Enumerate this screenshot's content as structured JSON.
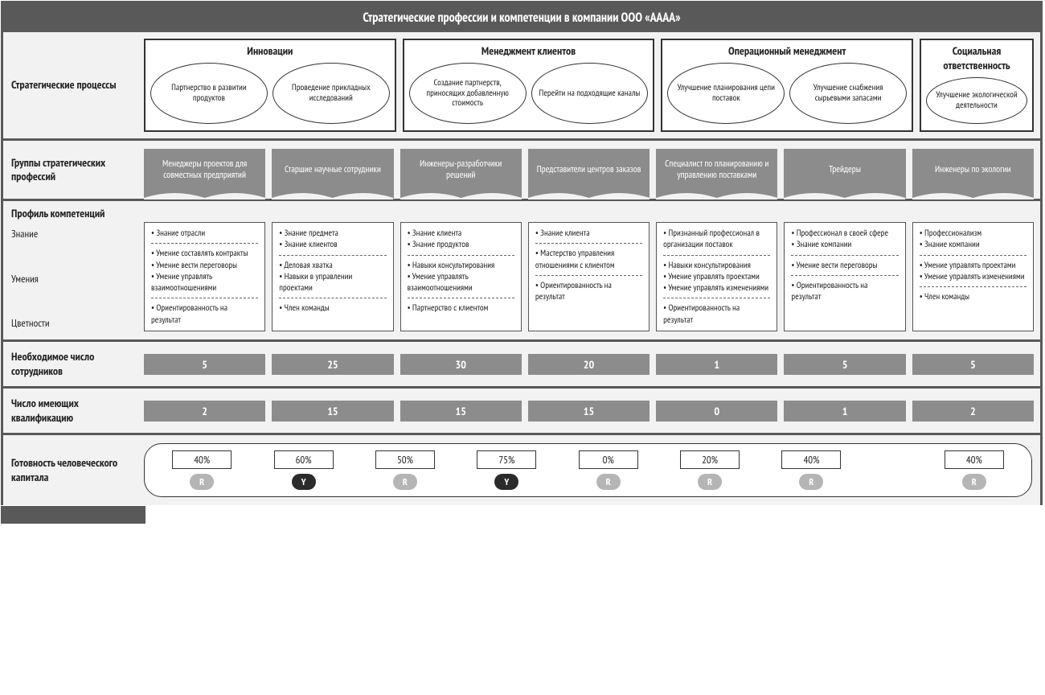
{
  "title": "Стратегические профессии и компетенции в компании ООО «АААА»",
  "rows": {
    "processes_label": "Стратегические процессы",
    "groups_label": "Группы стратегических профессий",
    "profile_header": "Профиль компетенций",
    "profile_side": {
      "a": "Знание",
      "b": "Умения",
      "c": "Цветности"
    },
    "need_label": "Необходимое число сотрудников",
    "have_label": "Число имеющих квалификацию",
    "ready_label": "Готовность человеческого капитала"
  },
  "processes": [
    {
      "title": "Инновации",
      "ovals": [
        "Партнерство в развитии продуктов",
        "Проведение прикладных исследований"
      ]
    },
    {
      "title": "Менеджмент клиентов",
      "ovals": [
        "Создание партнерств, приносящих добавленную стоимость",
        "Перейти на подходящие каналы"
      ]
    },
    {
      "title": "Операционный менеджмент",
      "ovals": [
        "Улучшение планирования цепи поставок",
        "Улучшение снабжения сырьевыми запасами"
      ]
    },
    {
      "title": "Социальная ответственность",
      "narrow": true,
      "ovals": [
        "Улучшение экологической деятельности"
      ]
    }
  ],
  "professions": [
    "Менеджеры проектов для совместных предприятий",
    "Старшие научные сотрудники",
    "Инженеры-разработчики решений",
    "Представители центров заказов",
    "Специалист по планированию и управлению поставками",
    "Трейдеры",
    "Инженеры по экологии"
  ],
  "competencies": [
    {
      "sections": [
        [
          "Знание отрасли"
        ],
        [
          "Умение составлять контракты",
          "Умение вести переговоры",
          "Умение управлять взаимоотношениями"
        ],
        [
          "Ориентированность на результат"
        ]
      ]
    },
    {
      "sections": [
        [
          "Знание предмета",
          "Знание клиентов"
        ],
        [
          "Деловая хватка",
          "Навыки в управлении проектами"
        ],
        [
          "Член команды"
        ]
      ]
    },
    {
      "sections": [
        [
          "Знание клиента",
          "Знание продуктов"
        ],
        [
          "Навыки консультирования",
          "Умение управлять взаимоотношениями"
        ],
        [
          "Партнерство с клиентом"
        ]
      ]
    },
    {
      "sections": [
        [
          "Знание клиента"
        ],
        [
          "Мастерство управления отношениями с клиентом"
        ],
        [
          "Ориентированность на результат"
        ]
      ]
    },
    {
      "sections": [
        [
          "Признанный профессионал в организации поставок"
        ],
        [
          "Навыки консультирования",
          "Умение управлять проектами",
          "Умение управлять изменениями"
        ],
        [
          "Ориентированность на результат"
        ]
      ]
    },
    {
      "sections": [
        [
          "Профессионал в своей сфере",
          "Знание компании"
        ],
        [
          "Умение вести переговоры"
        ],
        [
          "Ориентированность на результат"
        ]
      ]
    },
    {
      "sections": [
        [
          "Профессионализм",
          "Знание компании"
        ],
        [
          "Умение управлять проектами",
          "Умение управлять изменениями"
        ],
        [
          "Член команды"
        ]
      ]
    }
  ],
  "needed": [
    "5",
    "25",
    "30",
    "20",
    "1",
    "5",
    "5"
  ],
  "qualified": [
    "2",
    "15",
    "15",
    "15",
    "0",
    "1",
    "2"
  ],
  "readiness": [
    {
      "pct": "40%",
      "badge": "R",
      "tone": "light"
    },
    {
      "pct": "60%",
      "badge": "Y",
      "tone": "dark"
    },
    {
      "pct": "50%",
      "badge": "R",
      "tone": "light"
    },
    {
      "pct": "75%",
      "badge": "Y",
      "tone": "dark"
    },
    {
      "pct": "0%",
      "badge": "R",
      "tone": "light"
    },
    {
      "pct": "20%",
      "badge": "R",
      "tone": "light"
    },
    {
      "pct": "40%",
      "badge": "R",
      "tone": "light"
    },
    {
      "gap": true
    },
    {
      "pct": "40%",
      "badge": "R",
      "tone": "light"
    }
  ],
  "colors": {
    "frame": "#595959",
    "panel": "#f2f2f2",
    "card": "#8c8c8c",
    "badge_light": "#b5b5b5",
    "badge_dark": "#2b2b2b"
  }
}
